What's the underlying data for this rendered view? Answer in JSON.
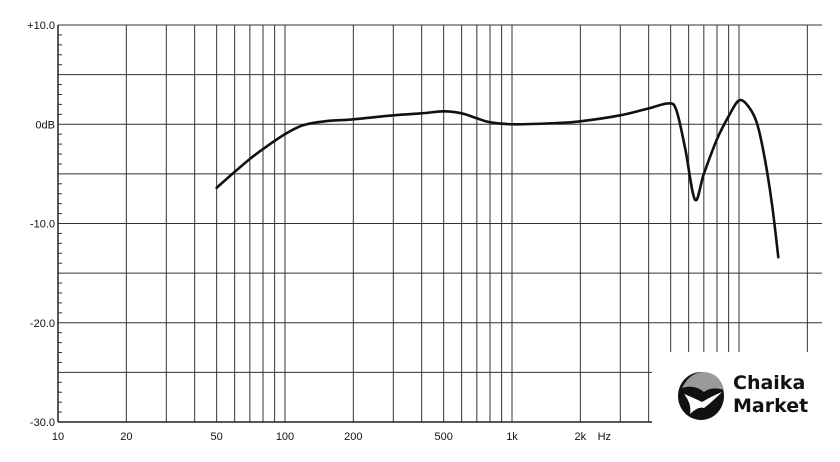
{
  "chart_data": {
    "type": "line",
    "title": "",
    "xlabel": "",
    "ylabel": "",
    "x_unit_label": "Hz",
    "x_scale": "log",
    "xlim": [
      10,
      25000
    ],
    "ylim": [
      -30,
      10
    ],
    "grid": true,
    "x_tick_labels": [
      {
        "value": 10,
        "label": "10"
      },
      {
        "value": 20,
        "label": "20"
      },
      {
        "value": 50,
        "label": "50"
      },
      {
        "value": 100,
        "label": "100"
      },
      {
        "value": 200,
        "label": "200"
      },
      {
        "value": 500,
        "label": "500"
      },
      {
        "value": 1000,
        "label": "1k"
      },
      {
        "value": 2000,
        "label": "2k"
      }
    ],
    "y_tick_labels": [
      {
        "value": 10,
        "label": "+10.0"
      },
      {
        "value": 0,
        "label": "0dB"
      },
      {
        "value": -10,
        "label": "-10.0"
      },
      {
        "value": -20,
        "label": "-20.0"
      },
      {
        "value": -30,
        "label": "-30.0"
      }
    ],
    "series": [
      {
        "color": "#111111",
        "x": [
          50,
          60,
          70,
          80,
          100,
          120,
          150,
          200,
          300,
          400,
          500,
          600,
          700,
          800,
          1000,
          1500,
          2000,
          3000,
          4000,
          4900,
          5300,
          5800,
          6400,
          7000,
          8000,
          9000,
          10000,
          11000,
          12000,
          13000,
          14000,
          14900
        ],
        "y": [
          -6.4,
          -4.8,
          -3.5,
          -2.5,
          -1.0,
          -0.1,
          0.3,
          0.5,
          0.9,
          1.1,
          1.3,
          1.1,
          0.6,
          0.2,
          0.0,
          0.1,
          0.3,
          0.9,
          1.6,
          2.1,
          1.4,
          -2.5,
          -7.6,
          -5.0,
          -1.5,
          0.8,
          2.4,
          1.8,
          0.1,
          -3.5,
          -8.2,
          -13.4
        ]
      }
    ]
  },
  "logo": {
    "line1": "Chaika",
    "line2": "Market"
  }
}
